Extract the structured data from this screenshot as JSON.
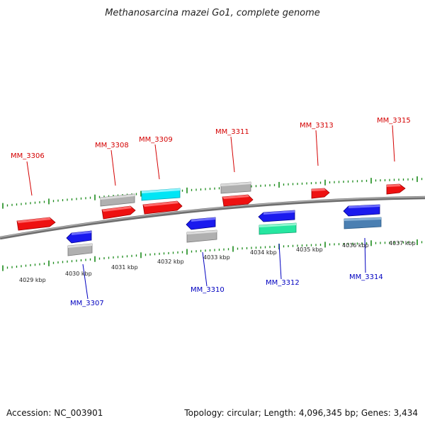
{
  "title": "Methanosarcina mazei Go1, complete genome",
  "footer": {
    "accession": "Accession: NC_003901",
    "summary": "Topology: circular; Length: 4,096,345 bp; Genes: 3,434"
  },
  "colors": {
    "forward_label": "#d40000",
    "reverse_label": "#0000c0",
    "tick": "#1a8a1a",
    "backbone": "#7a7a7a"
  },
  "ruler_labels": [
    "4029 kbp",
    "4030 kbp",
    "4031 kbp",
    "4032 kbp",
    "4033 kbp",
    "4034 kbp",
    "4035 kbp",
    "4036 kbp",
    "4037 kbp"
  ],
  "gene_labels": {
    "forward": [
      "MM_3306",
      "MM_3308",
      "MM_3309",
      "MM_3311",
      "MM_3313",
      "MM_3315"
    ],
    "reverse": [
      "MM_3307",
      "MM_3310",
      "MM_3312",
      "MM_3314"
    ]
  }
}
